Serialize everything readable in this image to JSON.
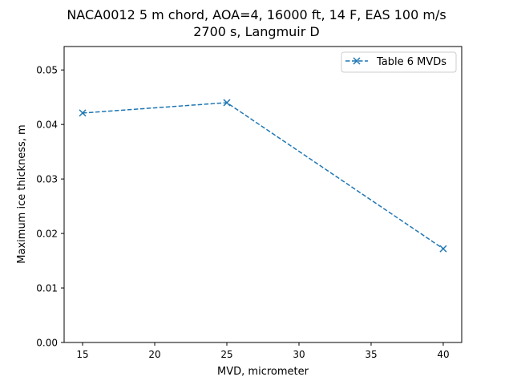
{
  "chart_data": {
    "type": "line",
    "title": "NACA0012 5 m chord, AOA=4, 16000 ft, 14 F, EAS 100 m/s\n2700 s, Langmuir D",
    "title_lines": [
      "NACA0012 5 m chord, AOA=4, 16000 ft, 14 F, EAS 100 m/s",
      "2700 s, Langmuir D"
    ],
    "xlabel": "MVD, micrometer",
    "ylabel": "Maximum ice thickness, m",
    "xlim": [
      13.72,
      41.28
    ],
    "ylim": [
      0,
      0.0543
    ],
    "xticks": [
      15,
      20,
      25,
      30,
      35,
      40
    ],
    "xtick_labels": [
      "15",
      "20",
      "25",
      "30",
      "35",
      "40"
    ],
    "yticks": [
      0,
      0.01,
      0.02,
      0.03,
      0.04,
      0.05
    ],
    "ytick_labels": [
      "0.00",
      "0.01",
      "0.02",
      "0.03",
      "0.04",
      "0.05"
    ],
    "grid": false,
    "legend_position": "top-right",
    "series": [
      {
        "name": "Table 6 MVDs",
        "x": [
          15,
          25,
          40
        ],
        "y": [
          0.0421,
          0.044,
          0.0172
        ],
        "color": "#1f77b4",
        "linestyle": "dashed",
        "marker": "x"
      }
    ]
  }
}
